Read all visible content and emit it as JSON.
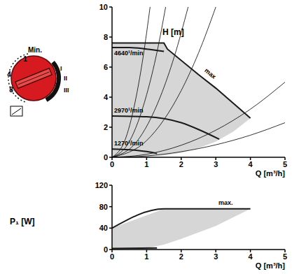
{
  "dial": {
    "top_label": "Min.",
    "left_labels": [
      "1",
      "4",
      "8"
    ],
    "right_labels": [
      "I",
      "II",
      "III"
    ]
  },
  "chart_data": [
    {
      "type": "line",
      "x_label": "Q [m³/h]",
      "y_label": "H [m]",
      "xlim": [
        0,
        5
      ],
      "ylim": [
        0,
        10
      ],
      "xticks": [
        0,
        1,
        2,
        3,
        4,
        5
      ],
      "yticks": [
        0,
        2,
        4,
        6,
        8,
        10
      ],
      "series": [
        {
          "type": "range",
          "color": "#d6d6d6",
          "x": [
            0,
            1,
            1.5,
            1.6,
            2,
            2.5,
            3,
            3.5,
            4
          ],
          "low": [
            0,
            0.05,
            0.12,
            0.15,
            0.3,
            0.6,
            1.05,
            1.7,
            2.6
          ],
          "high": [
            7.6,
            7.6,
            7.6,
            7.2,
            6.45,
            5.5,
            4.6,
            3.6,
            2.6
          ]
        },
        {
          "type": "line",
          "line_style": "thin",
          "color": "#000000",
          "x": [
            0,
            0.4,
            0.7,
            0.9,
            1.1
          ],
          "values": [
            0,
            1.3,
            4.05,
            6.7,
            10
          ]
        },
        {
          "type": "line",
          "line_style": "thin",
          "color": "#000000",
          "x": [
            0,
            0.5,
            1,
            1.3,
            1.55
          ],
          "values": [
            0,
            1.04,
            4.16,
            7.0,
            10
          ]
        },
        {
          "type": "line",
          "line_style": "thin",
          "color": "#000000",
          "x": [
            0,
            0.7,
            1.4,
            1.8,
            2.2
          ],
          "values": [
            0,
            1.0,
            4.05,
            6.7,
            10
          ]
        },
        {
          "type": "line",
          "line_style": "thin",
          "color": "#000000",
          "x": [
            0,
            1,
            2,
            2.5,
            3
          ],
          "values": [
            0,
            1.11,
            4.44,
            6.94,
            10
          ]
        },
        {
          "type": "line",
          "line_style": "thin",
          "color": "#000000",
          "x": [
            0,
            1,
            2,
            3,
            4,
            5
          ],
          "values": [
            0,
            0.2,
            0.8,
            1.8,
            3.2,
            5
          ]
        },
        {
          "type": "line",
          "line_style": "thin",
          "color": "#000000",
          "x": [
            0,
            1,
            2,
            3,
            4,
            5
          ],
          "values": [
            0,
            0.09,
            0.37,
            0.83,
            1.47,
            2.3
          ]
        },
        {
          "name": "max",
          "type": "line",
          "line_style": "solid",
          "color": "#1a1a1a",
          "x": [
            0,
            1.5,
            1.6,
            2.5,
            3,
            4
          ],
          "values": [
            7.6,
            7.6,
            7.2,
            5.5,
            4.6,
            2.6
          ]
        },
        {
          "name": "4640¹/min",
          "type": "line",
          "line_style": "solid",
          "color": "#1a1a1a",
          "x": [
            0,
            0.5,
            1,
            1.5
          ],
          "values": [
            7.3,
            7.3,
            7.2,
            7.05
          ]
        },
        {
          "name": "2970¹/min",
          "type": "line",
          "line_style": "solid",
          "color": "#1a1a1a",
          "x": [
            0,
            1,
            2,
            2.5,
            3.1
          ],
          "values": [
            2.75,
            2.7,
            2.3,
            1.85,
            1.2
          ]
        },
        {
          "name": "1270¹/min",
          "type": "line",
          "line_style": "solid",
          "color": "#1a1a1a",
          "x": [
            0,
            0.5,
            1,
            1.3
          ],
          "values": [
            0.55,
            0.5,
            0.38,
            0.25
          ]
        }
      ]
    },
    {
      "type": "line",
      "x_label": "Q [m³/h]",
      "y_label": "P₁ [W]",
      "xlim": [
        0,
        5
      ],
      "ylim": [
        0,
        120
      ],
      "xticks": [
        0,
        1,
        2,
        3,
        4,
        5
      ],
      "yticks": [
        0,
        40,
        80,
        120
      ],
      "series": [
        {
          "type": "range",
          "color": "#d6d6d6",
          "x": [
            0,
            1,
            1.5,
            2,
            3,
            4
          ],
          "low": [
            0,
            3,
            9,
            20,
            44,
            76
          ],
          "high": [
            40,
            64,
            76,
            76,
            76,
            76
          ]
        },
        {
          "type": "line",
          "line_style": "solid",
          "color": "#1a1a1a",
          "x": [
            0,
            1.3
          ],
          "values": [
            2,
            3
          ]
        },
        {
          "name": "max.",
          "type": "line",
          "line_style": "solid",
          "color": "#1a1a1a",
          "x": [
            0,
            1.5,
            4
          ],
          "values": [
            40,
            76,
            76
          ]
        }
      ]
    }
  ]
}
